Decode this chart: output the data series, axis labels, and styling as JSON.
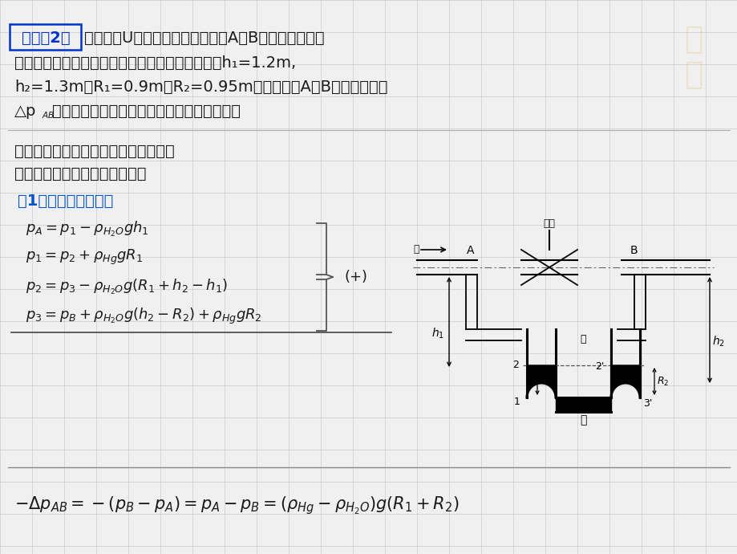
{
  "bg_color": "#f0f0f0",
  "text_color": "#1a1a1a",
  "blue_color": "#0033cc",
  "step1_color": "#0055cc",
  "grid_color": "#d0d0d0",
  "line_color": "#555555",
  "black": "#000000",
  "white": "#ffffff",
  "problem_lines": [
    [
      "bold_bracket",
      "》例题2《",
      "用一复式U管压差计测定水流管道A、B两点压差，压差"
    ],
    [
      "normal",
      "计指示液为汞，两段汞柱之间放的是水，今若测得h₁=1.2m,"
    ],
    [
      "normal",
      "h₂=1.3m，R₁=0.9m，R₂=0.95m。问管道中A、B两点间的压差"
    ],
    [
      "normal",
      "Δpₐⁱ​为多少？（先推导关系式，再进行数値运算）"
    ]
  ],
  "sol_line1": "解： 因压差计内充填的为非连续性均质",
  "sol_line2": "液体，则需寻找等压面分段计算",
  "step1_label": "（1） 首先推导关系式",
  "valve_label": "阀门",
  "water_label": "水",
  "mercury_label": "汞",
  "water_mid_label": "水"
}
